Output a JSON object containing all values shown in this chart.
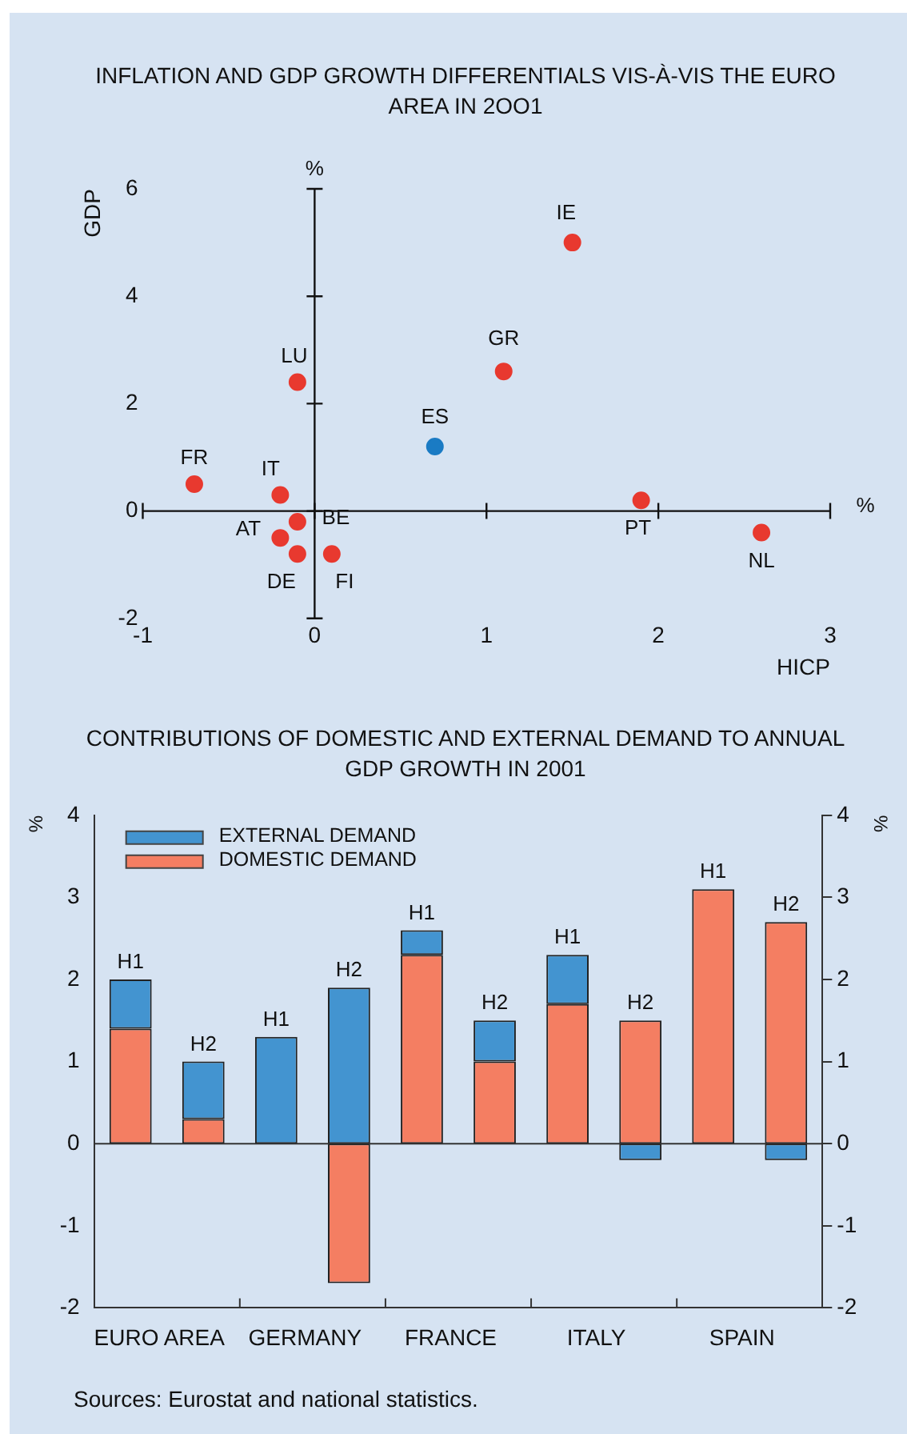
{
  "chart_data": [
    {
      "type": "scatter",
      "title": "INFLATION AND GDP GROWTH DIFFERENTIALS VIS-À-VIS THE EURO AREA IN 2OO1",
      "xlabel": "HICP",
      "ylabel": "GDP",
      "xlim": [
        -1,
        3
      ],
      "ylim": [
        -2,
        6
      ],
      "xticks": [
        -1,
        0,
        1,
        2,
        3
      ],
      "yticks": [
        -2,
        0,
        2,
        4,
        6
      ],
      "legend": false,
      "marker": "circle",
      "series": [
        {
          "color": "#e8392f",
          "x": [
            -0.7,
            -0.2,
            -0.1,
            -0.1,
            -0.2,
            -0.1,
            0.1,
            1.1,
            1.5,
            1.9,
            2.6
          ],
          "values": [
            0.5,
            0.3,
            2.4,
            -0.2,
            -0.5,
            -0.8,
            -0.8,
            2.6,
            5.0,
            0.2,
            -0.4
          ]
        },
        {
          "color": "#1a7bc4",
          "x": [
            0.7
          ],
          "values": [
            1.2
          ]
        }
      ],
      "annotations": [
        {
          "text": "FR",
          "x": -0.7,
          "y": 0.5
        },
        {
          "text": "IT",
          "x": -0.2,
          "y": 0.3
        },
        {
          "text": "LU",
          "x": -0.1,
          "y": 2.4
        },
        {
          "text": "BE",
          "x": -0.1,
          "y": -0.2
        },
        {
          "text": "AT",
          "x": -0.2,
          "y": -0.5
        },
        {
          "text": "DE",
          "x": -0.1,
          "y": -0.8
        },
        {
          "text": "FI",
          "x": 0.1,
          "y": -0.8
        },
        {
          "text": "ES",
          "x": 0.7,
          "y": 1.2
        },
        {
          "text": "GR",
          "x": 1.1,
          "y": 2.6
        },
        {
          "text": "IE",
          "x": 1.5,
          "y": 5.0
        },
        {
          "text": "PT",
          "x": 1.9,
          "y": 0.2
        },
        {
          "text": "NL",
          "x": 2.6,
          "y": -0.4
        },
        "%",
        "%"
      ]
    },
    {
      "type": "bar",
      "title": "CONTRIBUTIONS OF DOMESTIC AND EXTERNAL DEMAND TO ANNUAL GDP GROWTH IN 2001",
      "stacked": true,
      "ylabel": "%",
      "y2label": "%",
      "categories": [
        "EURO AREA",
        null,
        "GERMANY",
        null,
        "FRANCE",
        null,
        "ITALY",
        null,
        "SPAIN",
        null
      ],
      "ylim": [
        -2,
        4
      ],
      "yticks": [
        -2,
        -1,
        0,
        1,
        2,
        3,
        4
      ],
      "y2lim": [
        -2,
        4
      ],
      "y2ticks": [
        -2,
        -1,
        0,
        1,
        2,
        3,
        4
      ],
      "legend": "top left",
      "series": [
        {
          "name": "DOMESTIC DEMAND",
          "color": "#f47e62",
          "values": [
            1.4,
            0.3,
            0,
            -1.7,
            2.3,
            1.0,
            1.7,
            1.5,
            3.1,
            2.7
          ],
          "value_labels": [
            null,
            null,
            null,
            null,
            null,
            null,
            null,
            "H2",
            "H1",
            "H2"
          ]
        },
        {
          "name": "EXTERNAL DEMAND",
          "color": "#4394d0",
          "values": [
            0.6,
            0.7,
            1.3,
            1.9,
            0.3,
            0.5,
            0.6,
            -0.2,
            0,
            -0.2
          ],
          "value_labels": [
            "H1",
            "H2",
            "H1",
            "H2",
            "H1",
            "H2",
            "H1",
            null,
            null,
            null
          ]
        }
      ],
      "annotations": [
        "Sources: Eurostat and national statistics."
      ]
    }
  ]
}
